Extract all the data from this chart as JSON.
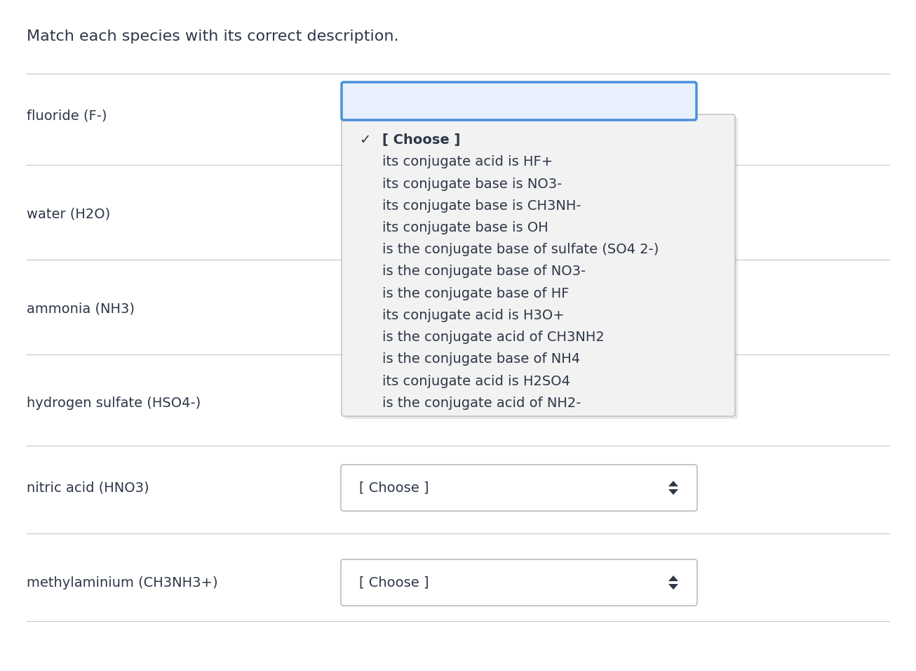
{
  "title": "Match each species with its correct description.",
  "bg_color": "#ffffff",
  "species": [
    "fluoride (F-)",
    "water (H2O)",
    "ammonia (NH3)",
    "hydrogen sulfate (HSO4-)",
    "nitric acid (HNO3)",
    "methylaminium (CH3NH3+)"
  ],
  "dropdown_options": [
    "[ Choose ]",
    "its conjugate acid is HF+",
    "its conjugate base is NO3-",
    "its conjugate base is CH3NH-",
    "its conjugate base is OH",
    "is the conjugate base of sulfate (SO4 2-)",
    "is the conjugate base of NO3-",
    "is the conjugate base of HF",
    "its conjugate acid is H3O+",
    "is the conjugate acid of CH3NH2",
    "is the conjugate base of NH4",
    "its conjugate acid is H2SO4",
    "is the conjugate acid of NH2-"
  ],
  "text_color": "#2d3748",
  "divider_color": "#cccccc",
  "dropdown_box_color": "#f2f2f2",
  "dropdown_border_color": "#bbbbbb",
  "dropdown_open_border_color": "#4a90d9",
  "option_text_color": "#2d3748",
  "title_fontsize": 16,
  "species_fontsize": 14,
  "option_fontsize": 14,
  "choose_fontsize": 14,
  "arrow_color": "#2d3748"
}
